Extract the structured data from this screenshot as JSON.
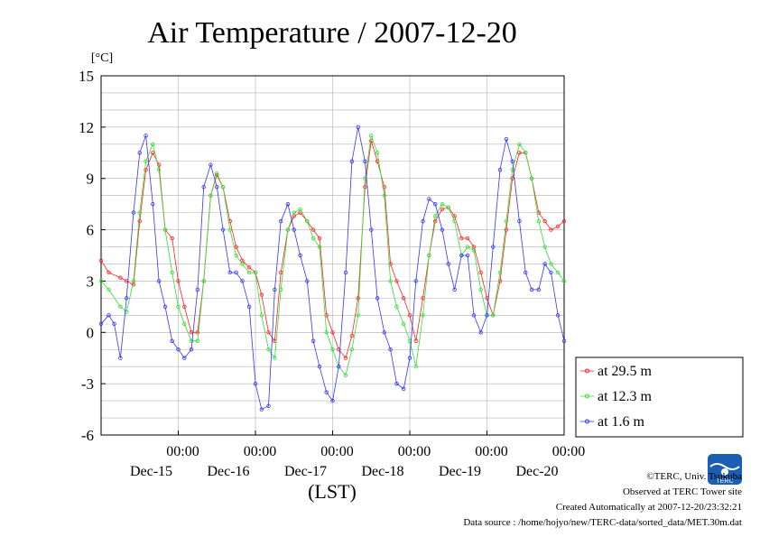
{
  "chart_data": {
    "type": "line",
    "title": "Air Temperature / 2007-12-20",
    "yunit": "[°C]",
    "xlabel": "(LST)",
    "ylim": [
      -6,
      15
    ],
    "yticks": [
      15,
      12,
      9,
      6,
      3,
      0,
      -3,
      -6
    ],
    "xlim": [
      0,
      6
    ],
    "xticks": [
      {
        "pos": 1,
        "time": "00:00",
        "date": "Dec-15"
      },
      {
        "pos": 2,
        "time": "00:00",
        "date": "Dec-16"
      },
      {
        "pos": 3,
        "time": "00:00",
        "date": "Dec-17"
      },
      {
        "pos": 4,
        "time": "00:00",
        "date": "Dec-18"
      },
      {
        "pos": 5,
        "time": "00:00",
        "date": "Dec-19"
      },
      {
        "pos": 6,
        "time": "00:00",
        "date": "Dec-20"
      }
    ],
    "grid": true,
    "legend_position": "right",
    "series": [
      {
        "name": "at 29.5 m",
        "color": "#ff2020",
        "x": [
          0.0,
          0.1,
          0.25,
          0.33,
          0.42,
          0.5,
          0.58,
          0.67,
          0.75,
          0.83,
          0.92,
          1.0,
          1.08,
          1.17,
          1.25,
          1.33,
          1.42,
          1.5,
          1.58,
          1.67,
          1.75,
          1.83,
          1.92,
          2.0,
          2.08,
          2.17,
          2.25,
          2.33,
          2.42,
          2.5,
          2.58,
          2.67,
          2.75,
          2.83,
          2.92,
          3.0,
          3.08,
          3.17,
          3.25,
          3.33,
          3.42,
          3.5,
          3.58,
          3.67,
          3.75,
          3.83,
          3.92,
          4.0,
          4.08,
          4.17,
          4.25,
          4.33,
          4.42,
          4.5,
          4.58,
          4.67,
          4.75,
          4.83,
          4.92,
          5.0,
          5.08,
          5.17,
          5.25,
          5.33,
          5.42,
          5.5,
          5.58,
          5.67,
          5.75,
          5.83,
          5.92,
          6.0
        ],
        "y": [
          4.2,
          3.5,
          3.2,
          3.0,
          2.8,
          6.5,
          9.5,
          10.5,
          9.8,
          6.0,
          5.5,
          3.0,
          1.5,
          0.0,
          0.0,
          3.0,
          8.0,
          9.2,
          8.5,
          6.5,
          5.0,
          4.2,
          3.8,
          3.5,
          2.2,
          0.0,
          -0.5,
          3.5,
          6.0,
          6.8,
          7.0,
          6.5,
          6.0,
          5.5,
          1.0,
          0.0,
          -1.0,
          -1.5,
          -0.2,
          2.0,
          8.5,
          11.2,
          10.0,
          8.5,
          4.0,
          3.0,
          2.0,
          1.0,
          -0.5,
          2.0,
          4.5,
          6.5,
          7.2,
          7.3,
          6.8,
          5.5,
          5.5,
          5.0,
          3.5,
          2.0,
          1.0,
          3.0,
          6.0,
          9.0,
          10.5,
          10.5,
          9.0,
          7.0,
          6.5,
          6.0,
          6.2,
          6.5
        ]
      },
      {
        "name": "at 12.3 m",
        "color": "#33dd33",
        "x": [
          0.0,
          0.1,
          0.25,
          0.33,
          0.42,
          0.5,
          0.58,
          0.67,
          0.75,
          0.83,
          0.92,
          1.0,
          1.08,
          1.17,
          1.25,
          1.33,
          1.42,
          1.5,
          1.58,
          1.67,
          1.75,
          1.83,
          1.92,
          2.0,
          2.08,
          2.17,
          2.25,
          2.33,
          2.42,
          2.5,
          2.58,
          2.67,
          2.75,
          2.83,
          2.92,
          3.0,
          3.08,
          3.17,
          3.25,
          3.33,
          3.42,
          3.5,
          3.58,
          3.67,
          3.75,
          3.83,
          3.92,
          4.0,
          4.08,
          4.17,
          4.25,
          4.33,
          4.42,
          4.5,
          4.58,
          4.67,
          4.75,
          4.83,
          4.92,
          5.0,
          5.08,
          5.17,
          5.25,
          5.33,
          5.42,
          5.5,
          5.58,
          5.67,
          5.75,
          5.83,
          5.92,
          6.0
        ],
        "y": [
          3.0,
          2.5,
          1.5,
          1.2,
          3.0,
          7.0,
          10.0,
          11.0,
          9.5,
          6.0,
          3.5,
          1.5,
          0.5,
          -0.5,
          -0.5,
          3.0,
          8.0,
          9.3,
          8.5,
          6.0,
          4.5,
          4.0,
          3.5,
          3.5,
          1.0,
          -1.0,
          -1.5,
          2.5,
          6.0,
          7.0,
          7.2,
          6.5,
          5.5,
          5.0,
          0.0,
          -1.0,
          -2.0,
          -2.5,
          -1.0,
          1.0,
          9.0,
          11.5,
          10.5,
          8.0,
          3.0,
          1.5,
          0.5,
          -0.5,
          -2.0,
          1.0,
          4.5,
          6.8,
          7.5,
          7.3,
          6.5,
          4.5,
          5.0,
          4.8,
          2.5,
          1.0,
          1.0,
          3.5,
          6.5,
          9.5,
          11.0,
          10.5,
          9.0,
          6.5,
          5.0,
          4.0,
          3.5,
          3.0
        ]
      },
      {
        "name": "at 1.6 m",
        "color": "#3333ff",
        "x": [
          0.0,
          0.1,
          0.17,
          0.25,
          0.33,
          0.42,
          0.5,
          0.58,
          0.67,
          0.75,
          0.83,
          0.92,
          1.0,
          1.08,
          1.17,
          1.25,
          1.33,
          1.42,
          1.5,
          1.58,
          1.67,
          1.75,
          1.83,
          1.92,
          2.0,
          2.08,
          2.17,
          2.25,
          2.33,
          2.42,
          2.5,
          2.58,
          2.67,
          2.75,
          2.83,
          2.92,
          3.0,
          3.08,
          3.17,
          3.25,
          3.33,
          3.42,
          3.5,
          3.58,
          3.67,
          3.75,
          3.83,
          3.92,
          4.0,
          4.08,
          4.17,
          4.25,
          4.33,
          4.42,
          4.5,
          4.58,
          4.67,
          4.75,
          4.83,
          4.92,
          5.0,
          5.08,
          5.17,
          5.25,
          5.33,
          5.42,
          5.5,
          5.58,
          5.67,
          5.75,
          5.83,
          5.92,
          6.0
        ],
        "y": [
          0.5,
          1.0,
          0.5,
          -1.5,
          2.0,
          7.0,
          10.5,
          11.5,
          7.5,
          3.0,
          1.5,
          -0.5,
          -1.0,
          -1.5,
          -1.0,
          2.5,
          8.5,
          9.8,
          8.5,
          6.0,
          3.5,
          3.5,
          3.0,
          1.5,
          -3.0,
          -4.5,
          -4.3,
          2.5,
          6.5,
          7.5,
          6.0,
          4.5,
          3.0,
          -0.5,
          -2.0,
          -3.5,
          -4.0,
          -2.0,
          3.5,
          10.0,
          12.0,
          10.0,
          6.0,
          2.0,
          0.0,
          -1.0,
          -3.0,
          -3.3,
          -1.5,
          3.0,
          6.5,
          7.8,
          7.5,
          6.0,
          4.0,
          2.5,
          4.5,
          4.5,
          1.0,
          0.0,
          1.0,
          5.0,
          9.5,
          11.3,
          10.0,
          6.5,
          3.5,
          2.5,
          2.5,
          4.0,
          3.5,
          1.0,
          -0.5
        ]
      }
    ]
  },
  "footer": {
    "copyright": "©TERC, Univ. Tsukuba",
    "observed": "Observed at TERC Tower site",
    "created": "Created Automatically at 2007-12-20/23:32:21",
    "source": "Data source : /home/hojyo/new/TERC-data/sorted_data/MET.30m.dat"
  },
  "logo": {
    "text": "TERC"
  }
}
